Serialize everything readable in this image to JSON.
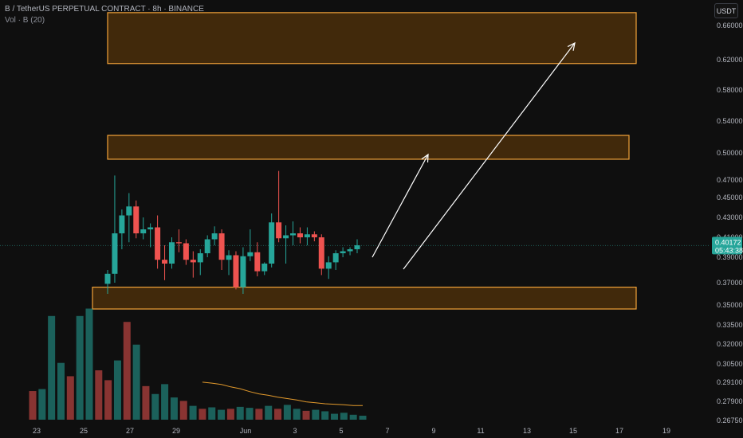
{
  "header": {
    "title": "B / TetherUS PERPETUAL CONTRACT · 8h · BINANCE",
    "volume_label": "Vol · B (20)"
  },
  "toolbar": {
    "currency_label": "USDT"
  },
  "colors": {
    "background": "#0f0f0f",
    "up": "#26a69a",
    "down": "#ef5350",
    "zone_fill": "#4a2e0a",
    "zone_stroke": "#f2a33a",
    "volume_ma": "#e39a2c",
    "arrow": "#ffffff",
    "last_price_bg": "#26a69a"
  },
  "chart_data": {
    "type": "candlestick",
    "symbol": "B / TetherUS PERPETUAL CONTRACT",
    "interval": "8h",
    "exchange": "BINANCE",
    "y_ticks": [
      "0.66000",
      "0.62000",
      "0.58000",
      "0.54000",
      "0.50000",
      "0.47000",
      "0.45000",
      "0.43000",
      "0.41000",
      "0.39000",
      "0.37000",
      "0.35000",
      "0.33500",
      "0.32000",
      "0.30500",
      "0.29100",
      "0.27900",
      "0.26750"
    ],
    "x_ticks": [
      {
        "label": "23",
        "date": "May 23"
      },
      {
        "label": "25",
        "date": "May 25"
      },
      {
        "label": "27",
        "date": "May 27"
      },
      {
        "label": "29",
        "date": "May 29"
      },
      {
        "label": "Jun",
        "date": "Jun 1"
      },
      {
        "label": "3",
        "date": "Jun 3"
      },
      {
        "label": "5",
        "date": "Jun 5"
      },
      {
        "label": "7",
        "date": "Jun 7"
      },
      {
        "label": "9",
        "date": "Jun 9"
      },
      {
        "label": "11",
        "date": "Jun 11"
      },
      {
        "label": "13",
        "date": "Jun 13"
      },
      {
        "label": "15",
        "date": "Jun 15"
      },
      {
        "label": "17",
        "date": "Jun 17"
      },
      {
        "label": "19",
        "date": "Jun 19"
      }
    ],
    "last_price": {
      "value": "0.40172",
      "countdown": "05:43:38"
    },
    "candles": [
      {
        "o": 0.369,
        "h": 0.38,
        "l": 0.36,
        "c": 0.377
      },
      {
        "o": 0.377,
        "h": 0.475,
        "l": 0.37,
        "c": 0.414
      },
      {
        "o": 0.414,
        "h": 0.438,
        "l": 0.398,
        "c": 0.432
      },
      {
        "o": 0.432,
        "h": 0.455,
        "l": 0.405,
        "c": 0.441
      },
      {
        "o": 0.441,
        "h": 0.447,
        "l": 0.409,
        "c": 0.414
      },
      {
        "o": 0.414,
        "h": 0.43,
        "l": 0.408,
        "c": 0.418
      },
      {
        "o": 0.418,
        "h": 0.424,
        "l": 0.4,
        "c": 0.42
      },
      {
        "o": 0.42,
        "h": 0.432,
        "l": 0.381,
        "c": 0.388
      },
      {
        "o": 0.388,
        "h": 0.402,
        "l": 0.372,
        "c": 0.385
      },
      {
        "o": 0.385,
        "h": 0.41,
        "l": 0.381,
        "c": 0.405
      },
      {
        "o": 0.405,
        "h": 0.418,
        "l": 0.395,
        "c": 0.404
      },
      {
        "o": 0.404,
        "h": 0.408,
        "l": 0.384,
        "c": 0.388
      },
      {
        "o": 0.388,
        "h": 0.396,
        "l": 0.374,
        "c": 0.386
      },
      {
        "o": 0.386,
        "h": 0.398,
        "l": 0.376,
        "c": 0.394
      },
      {
        "o": 0.394,
        "h": 0.412,
        "l": 0.39,
        "c": 0.408
      },
      {
        "o": 0.408,
        "h": 0.421,
        "l": 0.402,
        "c": 0.414
      },
      {
        "o": 0.414,
        "h": 0.418,
        "l": 0.38,
        "c": 0.388
      },
      {
        "o": 0.388,
        "h": 0.397,
        "l": 0.376,
        "c": 0.392
      },
      {
        "o": 0.392,
        "h": 0.396,
        "l": 0.364,
        "c": 0.366
      },
      {
        "o": 0.366,
        "h": 0.4,
        "l": 0.36,
        "c": 0.391
      },
      {
        "o": 0.391,
        "h": 0.418,
        "l": 0.387,
        "c": 0.395
      },
      {
        "o": 0.395,
        "h": 0.405,
        "l": 0.375,
        "c": 0.379
      },
      {
        "o": 0.379,
        "h": 0.386,
        "l": 0.376,
        "c": 0.385
      },
      {
        "o": 0.385,
        "h": 0.434,
        "l": 0.382,
        "c": 0.425
      },
      {
        "o": 0.425,
        "h": 0.48,
        "l": 0.405,
        "c": 0.409
      },
      {
        "o": 0.409,
        "h": 0.422,
        "l": 0.385,
        "c": 0.412
      },
      {
        "o": 0.412,
        "h": 0.426,
        "l": 0.402,
        "c": 0.414
      },
      {
        "o": 0.414,
        "h": 0.42,
        "l": 0.404,
        "c": 0.41
      },
      {
        "o": 0.41,
        "h": 0.42,
        "l": 0.402,
        "c": 0.413
      },
      {
        "o": 0.413,
        "h": 0.416,
        "l": 0.406,
        "c": 0.41
      },
      {
        "o": 0.41,
        "h": 0.413,
        "l": 0.376,
        "c": 0.381
      },
      {
        "o": 0.381,
        "h": 0.391,
        "l": 0.373,
        "c": 0.386
      },
      {
        "o": 0.386,
        "h": 0.397,
        "l": 0.38,
        "c": 0.394
      },
      {
        "o": 0.394,
        "h": 0.4,
        "l": 0.39,
        "c": 0.396
      },
      {
        "o": 0.396,
        "h": 0.4,
        "l": 0.392,
        "c": 0.398
      },
      {
        "o": 0.398,
        "h": 0.408,
        "l": 0.394,
        "c": 0.402
      }
    ],
    "volume": [
      58,
      62,
      210,
      115,
      88,
      210,
      225,
      100,
      80,
      120,
      198,
      152,
      68,
      52,
      72,
      45,
      38,
      28,
      22,
      25,
      20,
      22,
      26,
      24,
      22,
      28,
      22,
      30,
      22,
      18,
      20,
      17,
      12,
      14,
      10,
      8
    ],
    "volume_up": [
      false,
      true,
      true,
      true,
      false,
      true,
      true,
      false,
      false,
      true,
      false,
      true,
      false,
      true,
      true,
      true,
      false,
      true,
      false,
      true,
      true,
      false,
      true,
      true,
      false,
      true,
      false,
      true,
      true,
      false,
      true,
      true,
      true,
      true,
      true,
      true
    ],
    "volume_ma": [
      null,
      null,
      null,
      null,
      null,
      null,
      null,
      null,
      null,
      null,
      null,
      null,
      null,
      null,
      null,
      null,
      null,
      null,
      80,
      78,
      75,
      70,
      66,
      60,
      55,
      52,
      48,
      45,
      42,
      38,
      36,
      34,
      33,
      32,
      30,
      30
    ],
    "zones": [
      {
        "from": 0.615,
        "to": 0.675
      },
      {
        "from": 0.493,
        "to": 0.522
      },
      {
        "from": 0.347,
        "to": 0.366
      }
    ]
  }
}
